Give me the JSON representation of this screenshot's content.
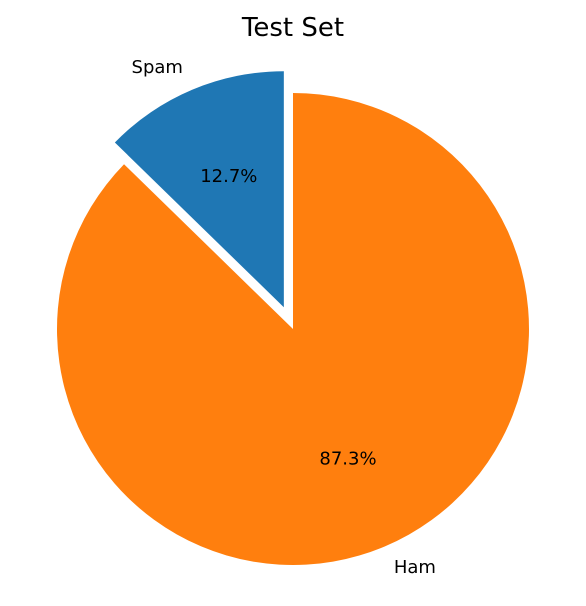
{
  "chart_data": {
    "type": "pie",
    "title": "Test Set",
    "labels": [
      "Spam",
      "Ham"
    ],
    "values": [
      12.7,
      87.3
    ],
    "percent_labels": [
      "12.7%",
      "87.3%"
    ],
    "colors": [
      "#1f77b4",
      "#ff7f0e"
    ],
    "explode": [
      0.1,
      0
    ],
    "start_angle_deg": 90,
    "direction": "counterclockwise"
  }
}
